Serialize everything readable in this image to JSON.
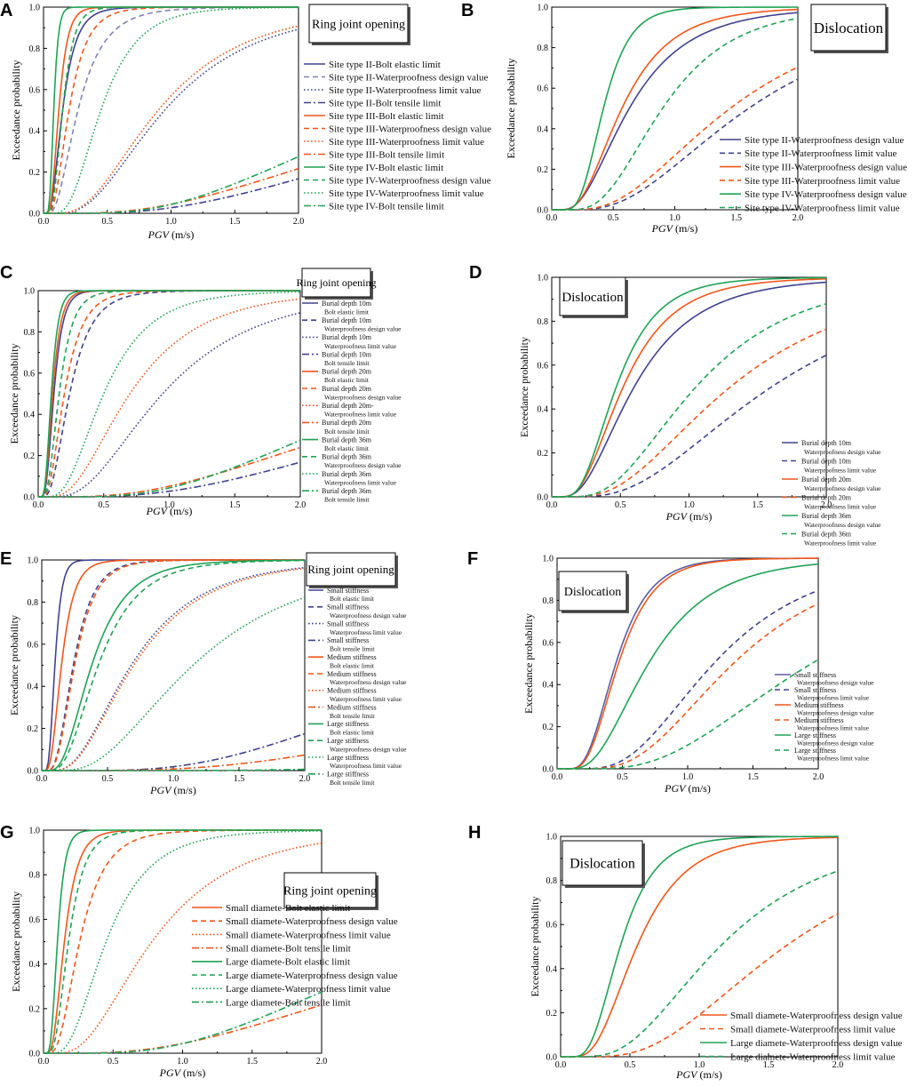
{
  "colors": {
    "blue": "#40428e",
    "orange": "#f0561a",
    "green": "#1fa254",
    "light_blue": "#7f81b3",
    "light_orange": "#f59a72",
    "mid_blue": "#5a5ca0"
  },
  "chart_data": [
    {
      "panel": "A",
      "type": "line",
      "box_title": "Ring joint opening",
      "title_size": 14,
      "legend_size": 11,
      "legend_fmt": "single",
      "legend_spacing": 14.5,
      "xlabel": "PGV",
      "xunit": " (m/s)",
      "ylabel": "Exceedance probability",
      "xlim": [
        0,
        2
      ],
      "ylim": [
        0,
        1
      ],
      "xticks": [
        "0.0",
        "0.5",
        "1.0",
        "1.5",
        "2.0"
      ],
      "yticks": [
        "0.0",
        "0.2",
        "0.4",
        "0.6",
        "0.8",
        "1.0"
      ],
      "series": [
        {
          "name": "Site type II-Bolt elastic limit",
          "color": "blue",
          "dash": "solid",
          "median": 0.15,
          "beta": 0.55
        },
        {
          "name": "Site type II-Waterproofness design value",
          "color": "light_blue",
          "dash": "dash",
          "median": 0.27,
          "beta": 0.6
        },
        {
          "name": "Site type II-Waterproofness limit value",
          "color": "blue",
          "dash": "dot",
          "median": 0.95,
          "beta": 0.6
        },
        {
          "name": "Site type II-Bolt tensile limit",
          "color": "blue",
          "dash": "dashdot",
          "median": 4.0,
          "beta": 0.72
        },
        {
          "name": "Site type III-Bolt elastic limit",
          "color": "orange",
          "dash": "solid",
          "median": 0.12,
          "beta": 0.45
        },
        {
          "name": "Site type III-Waterproofness design value",
          "color": "orange",
          "dash": "dash",
          "median": 0.2,
          "beta": 0.55
        },
        {
          "name": "Site type III-Waterproofness limit value",
          "color": "orange",
          "dash": "dot",
          "median": 0.9,
          "beta": 0.6
        },
        {
          "name": "Site type III-Bolt tensile limit",
          "color": "orange",
          "dash": "dashdot",
          "median": 3.6,
          "beta": 0.75
        },
        {
          "name": "Site type IV-Bolt elastic limit",
          "color": "green",
          "dash": "solid",
          "median": 0.08,
          "beta": 0.35
        },
        {
          "name": "Site type IV-Waterproofness design value",
          "color": "green",
          "dash": "dash",
          "median": 0.15,
          "beta": 0.45
        },
        {
          "name": "Site type IV-Waterproofness limit value",
          "color": "green",
          "dash": "dot",
          "median": 0.45,
          "beta": 0.5
        },
        {
          "name": "Site type IV-Bolt tensile limit",
          "color": "green",
          "dash": "dashdot",
          "median": 2.9,
          "beta": 0.62
        }
      ]
    },
    {
      "panel": "B",
      "type": "line",
      "box_title": "Dislocation",
      "title_size": 17,
      "legend_size": 11,
      "legend_fmt": "single",
      "legend_spacing": 15.3,
      "xlabel": "PGV",
      "xunit": " (m/s)",
      "ylabel": "Exceedance probability",
      "xlim": [
        0,
        2
      ],
      "ylim": [
        0,
        1
      ],
      "xticks": [
        "0.0",
        "0.5",
        "1.0",
        "1.5",
        "2.0"
      ],
      "yticks": [
        "0.0",
        "0.2",
        "0.4",
        "0.6",
        "0.8",
        "1.0"
      ],
      "series": [
        {
          "name": "Site type II-Waterproofness design value",
          "color": "blue",
          "dash": "solid",
          "median": 0.63,
          "beta": 0.6
        },
        {
          "name": "Site type II-Waterproofness limit value",
          "color": "blue",
          "dash": "dash",
          "median": 1.6,
          "beta": 0.6
        },
        {
          "name": "Site type III-Waterproofness design value",
          "color": "orange",
          "dash": "solid",
          "median": 0.57,
          "beta": 0.55
        },
        {
          "name": "Site type III-Waterproofness limit value",
          "color": "orange",
          "dash": "dash",
          "median": 1.45,
          "beta": 0.6
        },
        {
          "name": "Site type IV-Waterproofness design value",
          "color": "green",
          "dash": "solid",
          "median": 0.42,
          "beta": 0.4
        },
        {
          "name": "Site type IV-Waterproofness limit value",
          "color": "green",
          "dash": "dash",
          "median": 0.9,
          "beta": 0.5
        }
      ]
    },
    {
      "panel": "C",
      "type": "line",
      "box_title": "Ring joint opening",
      "title_size": 12,
      "legend_size": 8,
      "legend_fmt": "two-line",
      "legend_spacing": 19.2,
      "xlabel": "PGV",
      "xunit": " (m/s)",
      "ylabel": "Exceedance probability",
      "xlim": [
        0,
        2
      ],
      "ylim": [
        0,
        1
      ],
      "xticks": [
        "0.0",
        "0.5",
        "1.0",
        "1.5",
        "2.0"
      ],
      "yticks": [
        "0.0",
        "0.2",
        "0.4",
        "0.6",
        "0.8",
        "1.0"
      ],
      "series": [
        {
          "name": "Burial depth 10m",
          "name2": "Bolt elastic limit",
          "color": "blue",
          "dash": "solid",
          "median": 0.12,
          "beta": 0.45
        },
        {
          "name": "Burial depth 10m",
          "name2": "Waterproofness design value",
          "color": "blue",
          "dash": "dash",
          "median": 0.24,
          "beta": 0.55
        },
        {
          "name": "Burial depth 10m",
          "name2": "Waterproofness limit value",
          "color": "blue",
          "dash": "dot",
          "median": 0.95,
          "beta": 0.6
        },
        {
          "name": "Burial depth 10m",
          "name2": "Bolt tensile limit",
          "color": "blue",
          "dash": "dashdot",
          "median": 4.0,
          "beta": 0.72
        },
        {
          "name": "Burial depth 20m",
          "name2": "Bolt elastic limit",
          "color": "orange",
          "dash": "solid",
          "median": 0.11,
          "beta": 0.45
        },
        {
          "name": "Burial depth 20m",
          "name2": "Waterproofness design value",
          "color": "orange",
          "dash": "dash",
          "median": 0.2,
          "beta": 0.55
        },
        {
          "name": "Burial depth 20m-",
          "name2": "Waterproofness limit value",
          "color": "orange",
          "dash": "dot",
          "median": 0.7,
          "beta": 0.6
        },
        {
          "name": "Burial depth 20m",
          "name2": "Bolt tensile limit",
          "color": "orange",
          "dash": "dashdot",
          "median": 3.4,
          "beta": 0.75
        },
        {
          "name": "Burial depth 36m",
          "name2": "Bolt elastic limit",
          "color": "green",
          "dash": "solid",
          "median": 0.1,
          "beta": 0.42
        },
        {
          "name": "Burial depth 36m",
          "name2": "Waterproofness design value",
          "color": "green",
          "dash": "dash",
          "median": 0.16,
          "beta": 0.5
        },
        {
          "name": "Burial depth 36m",
          "name2": "Waterproofness limit value",
          "color": "green",
          "dash": "dot",
          "median": 0.5,
          "beta": 0.55
        },
        {
          "name": "Burial depth 36m",
          "name2": "Bolt tensile limit",
          "color": "green",
          "dash": "dashdot",
          "median": 2.9,
          "beta": 0.62
        }
      ]
    },
    {
      "panel": "D",
      "type": "line",
      "box_title": "Dislocation",
      "title_size": 15,
      "legend_size": 8,
      "legend_fmt": "two-line",
      "legend_spacing": 20.5,
      "xlabel": "PGV",
      "xunit": " (m/s)",
      "ylabel": "Exceedance probability",
      "xlim": [
        0,
        2
      ],
      "ylim": [
        0,
        1
      ],
      "xticks": [
        "0.0",
        "0.5",
        "1.0",
        "1.5",
        "2.0"
      ],
      "yticks": [
        "0.0",
        "0.2",
        "0.4",
        "0.6",
        "0.8",
        "1.0"
      ],
      "series": [
        {
          "name": "Burial depth 10m",
          "name2": "Waterproofness design value",
          "color": "blue",
          "dash": "solid",
          "median": 0.6,
          "beta": 0.6
        },
        {
          "name": "Burial depth 10m",
          "name2": "Waterproofness limit value",
          "color": "blue",
          "dash": "dash",
          "median": 1.6,
          "beta": 0.6
        },
        {
          "name": "Burial depth 20m",
          "name2": "Waterproofness design value",
          "color": "orange",
          "dash": "solid",
          "median": 0.52,
          "beta": 0.55
        },
        {
          "name": "Burial depth 20m",
          "name2": "Waterproofness limit value",
          "color": "orange",
          "dash": "dash",
          "median": 1.3,
          "beta": 0.6
        },
        {
          "name": "Burial depth 36m",
          "name2": "Waterproofness design value",
          "color": "green",
          "dash": "solid",
          "median": 0.47,
          "beta": 0.5
        },
        {
          "name": "Burial depth 36m",
          "name2": "Waterproofness limit value",
          "color": "green",
          "dash": "dash",
          "median": 1.05,
          "beta": 0.55
        }
      ]
    },
    {
      "panel": "E",
      "type": "line",
      "box_title": "Ring joint opening",
      "title_size": 13,
      "legend_size": 8,
      "legend_fmt": "two-line",
      "legend_spacing": 18.8,
      "xlabel": "PGV",
      "xunit": " (m/s)",
      "ylabel": "Exceedance probability",
      "xlim": [
        0,
        2
      ],
      "ylim": [
        0,
        1
      ],
      "xticks": [
        "0.0",
        "0.5",
        "1.0",
        "1.5",
        "2.0"
      ],
      "yticks": [
        "0.0",
        "0.2",
        "0.4",
        "0.6",
        "0.8",
        "1.0"
      ],
      "series": [
        {
          "name": "Small stiffness",
          "name2": "Bolt elastic limit",
          "color": "blue",
          "dash": "solid",
          "median": 0.1,
          "beta": 0.4
        },
        {
          "name": "Small stiffness",
          "name2": "Waterproofness design value",
          "color": "blue",
          "dash": "dash",
          "median": 0.24,
          "beta": 0.5
        },
        {
          "name": "Small stiffness",
          "name2": "Waterproofness limit value",
          "color": "blue",
          "dash": "dot",
          "median": 0.68,
          "beta": 0.6
        },
        {
          "name": "Small stiffness",
          "name2": "Bolt tensile limit",
          "color": "blue",
          "dash": "dashdot",
          "median": 3.5,
          "beta": 0.6
        },
        {
          "name": "Medium stiffness",
          "name2": "Bolt elastic limit",
          "color": "orange",
          "dash": "solid",
          "median": 0.15,
          "beta": 0.5
        },
        {
          "name": "Medium stiffness",
          "name2": "Waterproofness design value",
          "color": "orange",
          "dash": "dash",
          "median": 0.25,
          "beta": 0.5
        },
        {
          "name": "Medium stiffness",
          "name2": "Waterproofness limit value",
          "color": "orange",
          "dash": "dot",
          "median": 0.7,
          "beta": 0.6
        },
        {
          "name": "Medium stiffness",
          "name2": "Bolt tensile limit",
          "color": "orange",
          "dash": "dashdot",
          "median": 5.5,
          "beta": 0.7
        },
        {
          "name": "Large stiffness",
          "name2": "Bolt elastic limit",
          "color": "green",
          "dash": "solid",
          "median": 0.38,
          "beta": 0.55
        },
        {
          "name": "Large stiffness",
          "name2": "Waterproofness design value",
          "color": "green",
          "dash": "dash",
          "median": 0.43,
          "beta": 0.55
        },
        {
          "name": "Large stiffness",
          "name2": "Waterproofness limit value",
          "color": "green",
          "dash": "dot",
          "median": 1.15,
          "beta": 0.6
        },
        {
          "name": "Large stiffness",
          "name2": "Bolt tensile limit",
          "color": "green",
          "dash": "dashdot",
          "median": 9.0,
          "beta": 0.6
        }
      ]
    },
    {
      "panel": "F",
      "type": "line",
      "box_title": "Dislocation",
      "title_size": 14,
      "legend_size": 8,
      "legend_fmt": "two-line",
      "legend_spacing": 17,
      "xlabel": "PGV",
      "xunit": " (m/s)",
      "ylabel": "Exceedance probability",
      "xlim": [
        0,
        2
      ],
      "ylim": [
        0,
        1
      ],
      "xticks": [
        "0.0",
        "0.5",
        "1.0",
        "1.5",
        "2.0"
      ],
      "yticks": [
        "0.0",
        "0.2",
        "0.4",
        "0.6",
        "0.8",
        "1.0"
      ],
      "series": [
        {
          "name": "Small stiffness",
          "name2": "Waterproofness design value",
          "color": "mid_blue",
          "dash": "solid",
          "median": 0.45,
          "beta": 0.45
        },
        {
          "name": "Small stiffness",
          "name2": "Waterproofness limit value",
          "color": "blue",
          "dash": "dash",
          "median": 1.2,
          "beta": 0.5
        },
        {
          "name": "Medium stiffness",
          "name2": "Waterproofness design value",
          "color": "orange",
          "dash": "solid",
          "median": 0.47,
          "beta": 0.45
        },
        {
          "name": "Medium stiffness",
          "name2": "Waterproofness limit value",
          "color": "orange",
          "dash": "dash",
          "median": 1.35,
          "beta": 0.5
        },
        {
          "name": "Large stiffness",
          "name2": "Waterproofness design value",
          "color": "green",
          "dash": "solid",
          "median": 0.7,
          "beta": 0.55
        },
        {
          "name": "Large stiffness",
          "name2": "Waterproofness limit value",
          "color": "green",
          "dash": "dash",
          "median": 1.95,
          "beta": 0.55
        }
      ]
    },
    {
      "panel": "G",
      "type": "line",
      "box_title": "Ring joint opening",
      "title_size": 14,
      "legend_size": 11,
      "legend_fmt": "single",
      "legend_spacing": 15.2,
      "xlabel": "PGV",
      "xunit": " (m/s)",
      "ylabel": "Exceedance probability",
      "xlim": [
        0,
        2
      ],
      "ylim": [
        0,
        1
      ],
      "xticks": [
        "0.0",
        "0.5",
        "1.0",
        "1.5",
        "2.0"
      ],
      "yticks": [
        "0.0",
        "0.2",
        "0.4",
        "0.6",
        "0.8",
        "1.0"
      ],
      "series": [
        {
          "name": "Small diamete-Bolt elastic limit",
          "color": "orange",
          "dash": "solid",
          "median": 0.15,
          "beta": 0.5
        },
        {
          "name": "Small diamete-Waterproofness design value",
          "color": "orange",
          "dash": "dash",
          "median": 0.26,
          "beta": 0.55
        },
        {
          "name": "Small diamete-Waterproofness limit value",
          "color": "orange",
          "dash": "dot",
          "median": 0.78,
          "beta": 0.6
        },
        {
          "name": "Small diamete-Bolt tensile limit",
          "color": "orange",
          "dash": "dashdot",
          "median": 3.6,
          "beta": 0.75
        },
        {
          "name": "Large diamete-Bolt elastic limit",
          "color": "green",
          "dash": "solid",
          "median": 0.1,
          "beta": 0.42
        },
        {
          "name": "Large diamete-Waterproofness design value",
          "color": "green",
          "dash": "dash",
          "median": 0.18,
          "beta": 0.5
        },
        {
          "name": "Large diamete-Waterproofness limit value",
          "color": "green",
          "dash": "dot",
          "median": 0.45,
          "beta": 0.55
        },
        {
          "name": "Large diamete-Bolt tensile limit",
          "color": "green",
          "dash": "dashdot",
          "median": 2.9,
          "beta": 0.62
        }
      ]
    },
    {
      "panel": "H",
      "type": "line",
      "box_title": "Dislocation",
      "title_size": 16,
      "legend_size": 11,
      "legend_fmt": "single",
      "legend_spacing": 15.5,
      "xlabel": "PGV",
      "xunit": " (m/s)",
      "ylabel": "Exceedance probability",
      "xlim": [
        0,
        2
      ],
      "ylim": [
        0,
        1
      ],
      "xticks": [
        "0.0",
        "0.5",
        "1.0",
        "1.5",
        "2.0"
      ],
      "yticks": [
        "0.0",
        "0.2",
        "0.4",
        "0.6",
        "0.8",
        "1.0"
      ],
      "series": [
        {
          "name": "Small diamete-Waterproofness design value",
          "color": "orange",
          "dash": "solid",
          "median": 0.55,
          "beta": 0.5
        },
        {
          "name": "Small diamete-Waterproofness limit value",
          "color": "orange",
          "dash": "dash",
          "median": 1.62,
          "beta": 0.55
        },
        {
          "name": "Large diamete-Waterproofness design value",
          "color": "green",
          "dash": "solid",
          "median": 0.43,
          "beta": 0.45
        },
        {
          "name": "Large diamete-Waterproofness limit value",
          "color": "green",
          "dash": "dash",
          "median": 1.15,
          "beta": 0.55
        }
      ]
    }
  ]
}
